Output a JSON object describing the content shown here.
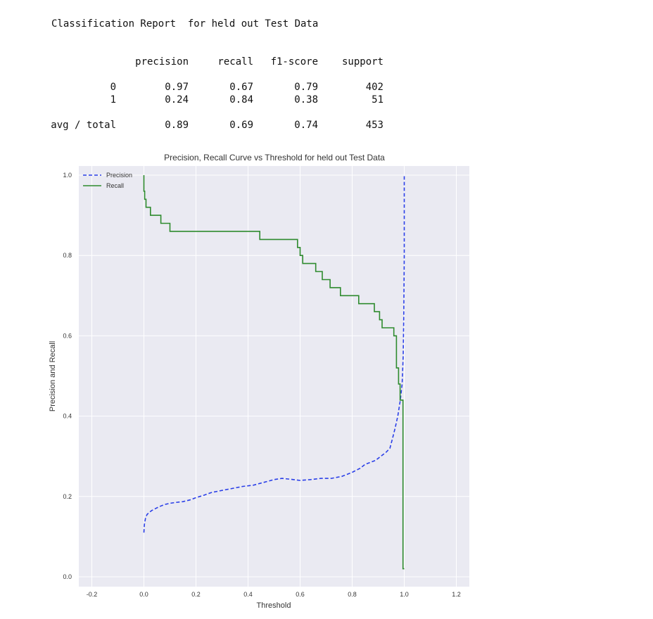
{
  "report": {
    "title": "Classification Report  for held out Test Data",
    "headers": [
      "precision",
      "recall",
      "f1-score",
      "support"
    ],
    "rows": [
      {
        "label": "0",
        "values": [
          "0.97",
          "0.67",
          "0.79",
          "402"
        ]
      },
      {
        "label": "1",
        "values": [
          "0.24",
          "0.84",
          "0.38",
          "51"
        ]
      }
    ],
    "avg": {
      "label": "avg / total",
      "values": [
        "0.89",
        "0.69",
        "0.74",
        "453"
      ]
    }
  },
  "chart_data": {
    "type": "line",
    "title": "Precision, Recall Curve vs Threshold   for held out Test Data",
    "xlabel": "Threshold",
    "ylabel": "Precision and Recall",
    "xlim": [
      -0.25,
      1.25
    ],
    "ylim": [
      0.0,
      1.0
    ],
    "xticks": [
      "-0.2",
      "0.0",
      "0.2",
      "0.4",
      "0.6",
      "0.8",
      "1.0",
      "1.2"
    ],
    "yticks": [
      "0.0",
      "0.2",
      "0.4",
      "0.6",
      "0.8",
      "1.0"
    ],
    "grid": true,
    "legend_position": "top-left",
    "series": [
      {
        "name": "Precision",
        "color": "#2a3fe8",
        "style": "dashed",
        "x": [
          0.0,
          0.002,
          0.006,
          0.012,
          0.02,
          0.03,
          0.045,
          0.06,
          0.08,
          0.1,
          0.12,
          0.15,
          0.18,
          0.2,
          0.23,
          0.26,
          0.3,
          0.34,
          0.38,
          0.42,
          0.46,
          0.5,
          0.53,
          0.56,
          0.6,
          0.64,
          0.68,
          0.72,
          0.76,
          0.8,
          0.83,
          0.85,
          0.87,
          0.89,
          0.91,
          0.93,
          0.945,
          0.955,
          0.965,
          0.975,
          0.985,
          0.992,
          0.996,
          0.998,
          1.0,
          1.0
        ],
        "y": [
          0.11,
          0.13,
          0.145,
          0.155,
          0.16,
          0.165,
          0.17,
          0.175,
          0.18,
          0.183,
          0.185,
          0.187,
          0.192,
          0.197,
          0.203,
          0.21,
          0.215,
          0.22,
          0.225,
          0.228,
          0.235,
          0.242,
          0.245,
          0.243,
          0.24,
          0.242,
          0.245,
          0.245,
          0.25,
          0.26,
          0.27,
          0.28,
          0.285,
          0.29,
          0.3,
          0.31,
          0.32,
          0.345,
          0.37,
          0.4,
          0.44,
          0.48,
          0.55,
          0.65,
          0.8,
          1.0
        ]
      },
      {
        "name": "Recall",
        "color": "#2e8b2e",
        "style": "solid",
        "x": [
          0.0,
          0.0,
          0.003,
          0.003,
          0.008,
          0.008,
          0.025,
          0.025,
          0.065,
          0.065,
          0.1,
          0.1,
          0.14,
          0.14,
          0.445,
          0.445,
          0.54,
          0.54,
          0.59,
          0.59,
          0.6,
          0.6,
          0.61,
          0.61,
          0.66,
          0.66,
          0.685,
          0.685,
          0.715,
          0.715,
          0.755,
          0.755,
          0.825,
          0.825,
          0.885,
          0.885,
          0.905,
          0.905,
          0.915,
          0.915,
          0.925,
          0.925,
          0.96,
          0.96,
          0.97,
          0.97,
          0.978,
          0.978,
          0.984,
          0.984,
          0.995,
          0.995,
          1.0
        ],
        "y": [
          1.0,
          0.96,
          0.96,
          0.94,
          0.94,
          0.92,
          0.92,
          0.9,
          0.9,
          0.88,
          0.88,
          0.86,
          0.86,
          0.86,
          0.86,
          0.84,
          0.84,
          0.84,
          0.84,
          0.82,
          0.82,
          0.8,
          0.8,
          0.78,
          0.78,
          0.76,
          0.76,
          0.74,
          0.74,
          0.72,
          0.72,
          0.7,
          0.7,
          0.68,
          0.68,
          0.66,
          0.66,
          0.64,
          0.64,
          0.62,
          0.62,
          0.62,
          0.62,
          0.6,
          0.6,
          0.52,
          0.52,
          0.48,
          0.48,
          0.44,
          0.44,
          0.02,
          0.02
        ]
      }
    ]
  }
}
